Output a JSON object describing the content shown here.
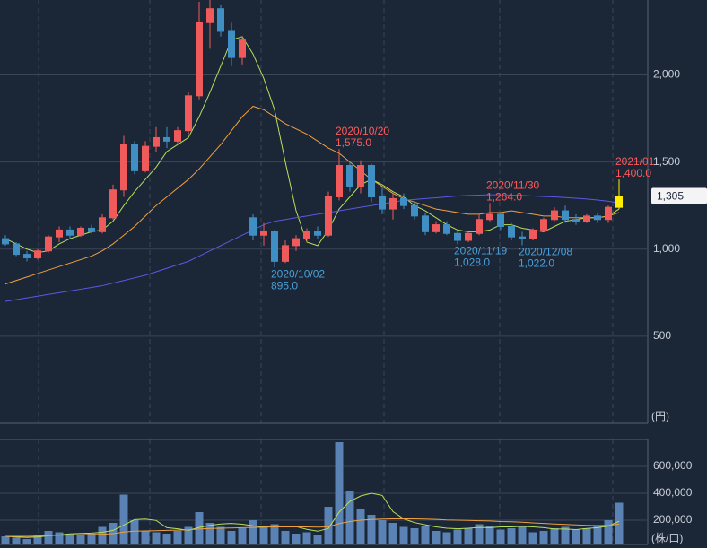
{
  "chart_data": [
    {
      "type": "candlestick",
      "categories": [
        null,
        null,
        null,
        null,
        null,
        null,
        null,
        null,
        null,
        null,
        null,
        null,
        null,
        null,
        null,
        null,
        null,
        null,
        null,
        null,
        null,
        null,
        null,
        null,
        null,
        null,
        null,
        null,
        null,
        null,
        null,
        null,
        null,
        null,
        null,
        null,
        null,
        null,
        null,
        null,
        null,
        null,
        null,
        null,
        null,
        null,
        null,
        null,
        null,
        null,
        null,
        null,
        null,
        null,
        null,
        null,
        null,
        null
      ],
      "open": [
        1060,
        1030,
        970,
        950,
        990,
        1070,
        1110,
        1080,
        1120,
        1100,
        1180,
        1340,
        1600,
        1450,
        1590,
        1640,
        1620,
        1680,
        1880,
        2300,
        2380,
        2250,
        2100,
        1180,
        1080,
        1100,
        930,
        1020,
        1060,
        1100,
        1080,
        1300,
        1480,
        1360,
        1480,
        1300,
        1230,
        1290,
        1250,
        1190,
        1100,
        1140,
        1090,
        1050,
        1090,
        1170,
        1200,
        1130,
        1070,
        1060,
        1110,
        1170,
        1220,
        1170,
        1160,
        1190,
        1170,
        1240
      ],
      "high": [
        1080,
        1040,
        990,
        1000,
        1080,
        1130,
        1130,
        1130,
        1140,
        1200,
        1370,
        1650,
        1620,
        1620,
        1700,
        1700,
        1700,
        1900,
        2420,
        2430,
        2400,
        2300,
        2220,
        1200,
        1150,
        1110,
        1050,
        1080,
        1120,
        1130,
        1330,
        1575,
        1500,
        1510,
        1490,
        1360,
        1320,
        1320,
        1270,
        1210,
        1160,
        1160,
        1110,
        1100,
        1200,
        1264,
        1210,
        1150,
        1100,
        1120,
        1180,
        1240,
        1250,
        1200,
        1200,
        1210,
        1250,
        1400
      ],
      "low": [
        1020,
        960,
        930,
        940,
        980,
        1040,
        1060,
        1070,
        1090,
        1090,
        1170,
        1300,
        1430,
        1440,
        1560,
        1580,
        1600,
        1660,
        1860,
        2150,
        2220,
        2050,
        2060,
        1050,
        1020,
        895,
        920,
        990,
        1040,
        1060,
        1070,
        1280,
        1330,
        1320,
        1270,
        1200,
        1170,
        1230,
        1170,
        1080,
        1090,
        1080,
        1028,
        1040,
        1080,
        1160,
        1110,
        1050,
        1022,
        1050,
        1100,
        1160,
        1150,
        1140,
        1150,
        1150,
        1150,
        1230
      ],
      "close": [
        1030,
        970,
        950,
        990,
        1070,
        1110,
        1080,
        1120,
        1100,
        1180,
        1340,
        1600,
        1450,
        1590,
        1640,
        1620,
        1680,
        1880,
        2300,
        2380,
        2250,
        2100,
        2200,
        1080,
        1100,
        930,
        1020,
        1060,
        1100,
        1080,
        1300,
        1480,
        1360,
        1480,
        1300,
        1230,
        1290,
        1250,
        1190,
        1100,
        1140,
        1090,
        1050,
        1090,
        1170,
        1200,
        1130,
        1070,
        1060,
        1110,
        1170,
        1220,
        1170,
        1160,
        1190,
        1170,
        1240,
        1305
      ],
      "up_color": "#f05a5a",
      "down_color": "#3f8fc4",
      "last_color": "#ffee00",
      "lines": [
        {
          "color": "#b8e05a",
          "values": [
            1060,
            1030,
            1000,
            980,
            990,
            1030,
            1060,
            1080,
            1100,
            1110,
            1160,
            1250,
            1330,
            1400,
            1470,
            1560,
            1600,
            1640,
            1760,
            1900,
            2050,
            2200,
            2220,
            2120,
            1980,
            1800,
            1500,
            1220,
            1040,
            1020,
            1110,
            1230,
            1300,
            1370,
            1400,
            1370,
            1330,
            1300,
            1250,
            1220,
            1180,
            1140,
            1110,
            1100,
            1100,
            1110,
            1140,
            1140,
            1120,
            1110,
            1100,
            1130,
            1160,
            1170,
            1180,
            1180,
            1190,
            1230
          ]
        },
        {
          "color": "#f0a040",
          "values": [
            800,
            820,
            840,
            860,
            880,
            900,
            920,
            940,
            960,
            990,
            1030,
            1080,
            1130,
            1190,
            1250,
            1300,
            1350,
            1400,
            1460,
            1530,
            1600,
            1680,
            1760,
            1820,
            1800,
            1760,
            1720,
            1690,
            1660,
            1620,
            1580,
            1550,
            1500,
            1450,
            1400,
            1360,
            1320,
            1290,
            1270,
            1250,
            1230,
            1220,
            1210,
            1200,
            1200,
            1210,
            1210,
            1220,
            1210,
            1200,
            1190,
            1190,
            1180,
            1180,
            1180,
            1180,
            1190,
            1210
          ]
        },
        {
          "color": "#5a5ae6",
          "values": [
            700,
            710,
            720,
            730,
            740,
            750,
            760,
            770,
            780,
            790,
            805,
            820,
            835,
            850,
            870,
            890,
            910,
            930,
            960,
            990,
            1020,
            1050,
            1080,
            1110,
            1140,
            1160,
            1170,
            1180,
            1190,
            1200,
            1210,
            1220,
            1230,
            1240,
            1250,
            1260,
            1270,
            1280,
            1285,
            1290,
            1295,
            1300,
            1305,
            1308,
            1310,
            1312,
            1312,
            1310,
            1308,
            1305,
            1302,
            1300,
            1296,
            1292,
            1288,
            1282,
            1275,
            1265
          ]
        }
      ],
      "ylim": [
        0,
        2430
      ],
      "yticks": [
        500,
        {
          "value": 1000,
          "label": "1,000"
        },
        {
          "value": 1500,
          "label": "1,500"
        },
        {
          "value": 2000,
          "label": "2,000"
        }
      ],
      "y_unit": "(円)",
      "last_price": {
        "value": 1305,
        "label": "1,305"
      },
      "annotations": [
        {
          "date": "2020/10/20",
          "value": 1575,
          "label": "1,575.0",
          "color": "#ff5a5a"
        },
        {
          "date": "2020/10/02",
          "value": 895,
          "label": "895.0",
          "color": "#4aa0d8"
        },
        {
          "date": "2020/11/30",
          "value": 1264,
          "label": "1,264.0",
          "color": "#ff5a5a"
        },
        {
          "date": "2020/11/19",
          "value": 1028,
          "label": "1,028.0",
          "color": "#4aa0d8"
        },
        {
          "date": "2020/12/08",
          "value": 1022,
          "label": "1,022.0",
          "color": "#4aa0d8"
        },
        {
          "date": "2021/01",
          "value": 1400,
          "label": "1,400.0",
          "color": "#ff5a5a"
        }
      ]
    },
    {
      "type": "bar",
      "values": [
        80000,
        70000,
        60000,
        90000,
        120000,
        110000,
        100000,
        90000,
        100000,
        150000,
        180000,
        390000,
        200000,
        120000,
        110000,
        100000,
        120000,
        150000,
        260000,
        180000,
        150000,
        120000,
        140000,
        200000,
        160000,
        170000,
        120000,
        100000,
        110000,
        90000,
        300000,
        780000,
        420000,
        280000,
        240000,
        200000,
        180000,
        150000,
        140000,
        160000,
        120000,
        110000,
        130000,
        140000,
        170000,
        160000,
        130000,
        140000,
        150000,
        110000,
        120000,
        140000,
        150000,
        130000,
        140000,
        160000,
        200000,
        330000
      ],
      "color": "#5a82b4",
      "lines": [
        {
          "color": "#b8e05a",
          "values": [
            80000,
            75000,
            72000,
            75000,
            84000,
            90000,
            98000,
            102000,
            104000,
            110000,
            124000,
            164000,
            204000,
            208000,
            198000,
            144000,
            136000,
            124000,
            146000,
            162000,
            172000,
            176000,
            170000,
            158000,
            150000,
            158000,
            156000,
            152000,
            132000,
            118000,
            138000,
            260000,
            340000,
            380000,
            400000,
            384000,
            264000,
            210000,
            182000,
            166000,
            150000,
            140000,
            136000,
            140000,
            146000,
            144000,
            150000,
            150000,
            154000,
            150000,
            144000,
            134000,
            134000,
            130000,
            138000,
            144000,
            156000,
            192000
          ]
        },
        {
          "color": "#f0a040",
          "values": [
            80000,
            80000,
            80000,
            82000,
            85000,
            88000,
            90000,
            92000,
            94000,
            96000,
            100000,
            112000,
            118000,
            120000,
            122000,
            124000,
            126000,
            128000,
            134000,
            138000,
            140000,
            142000,
            144000,
            146000,
            148000,
            150000,
            150000,
            150000,
            150000,
            148000,
            150000,
            175000,
            190000,
            200000,
            205000,
            208000,
            210000,
            210000,
            210000,
            208000,
            206000,
            202000,
            200000,
            198000,
            196000,
            194000,
            190000,
            188000,
            185000,
            180000,
            176000,
            172000,
            168000,
            165000,
            162000,
            160000,
            162000,
            170000
          ]
        }
      ],
      "ylim": [
        0,
        800000
      ],
      "yticks": [
        {
          "value": 200000,
          "label": "200,000"
        },
        {
          "value": 400000,
          "label": "400,000"
        },
        {
          "value": 600000,
          "label": "600,000"
        }
      ],
      "y_unit": "(株/口)"
    }
  ]
}
